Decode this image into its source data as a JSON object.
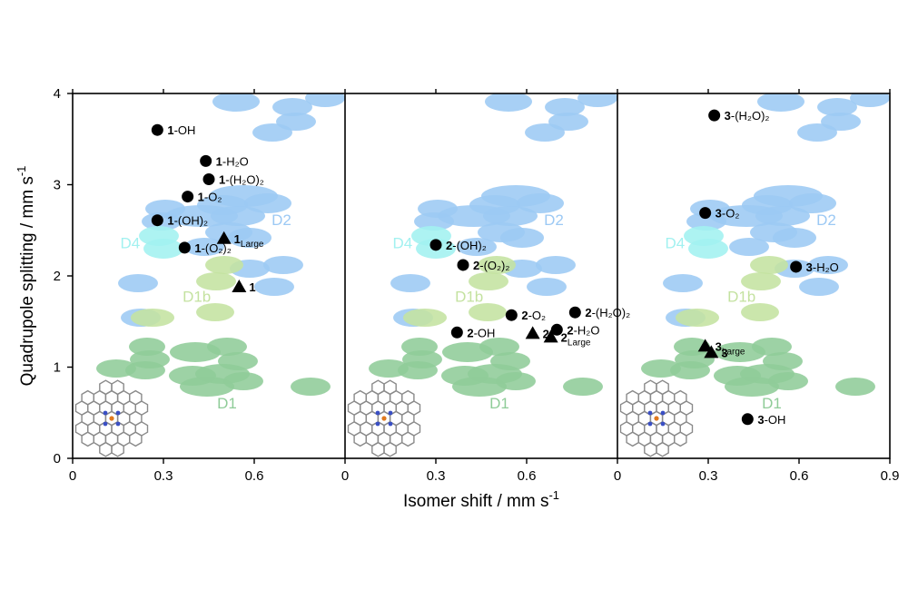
{
  "figure": {
    "ylabel": "Quadrupole splitting / mm s",
    "ylabel_sup": "-1",
    "xlabel": "Isomer shift / mm s",
    "xlabel_sup": "-1"
  },
  "colors": {
    "D1": "#8fcc98",
    "D1b": "#c4e2a0",
    "D2": "#9cc9f4",
    "D4": "#a2f1f0",
    "marker": "#000000"
  },
  "chart_data": [
    {
      "type": "scatter",
      "panel": 1,
      "xlim": [
        0,
        0.9
      ],
      "ylim": [
        0,
        4
      ],
      "x_ticks": [
        "0",
        "0.3",
        "0.6"
      ],
      "y_ticks": [
        "0",
        "1",
        "2",
        "3",
        "4"
      ],
      "region_labels": [
        {
          "text": "D2",
          "x": 0.69,
          "y": 2.6,
          "color": "D2"
        },
        {
          "text": "D4",
          "x": 0.19,
          "y": 2.35,
          "color": "D4"
        },
        {
          "text": "D1b",
          "x": 0.41,
          "y": 1.76,
          "color": "D1b"
        },
        {
          "text": "D1",
          "x": 0.51,
          "y": 0.59,
          "color": "D1"
        }
      ],
      "points": [
        {
          "marker": "circle",
          "x": 0.28,
          "y": 3.6,
          "label_bold": "1",
          "label_rest": "-OH"
        },
        {
          "marker": "circle",
          "x": 0.44,
          "y": 3.26,
          "label_bold": "1",
          "label_rest": "-H₂O"
        },
        {
          "marker": "circle",
          "x": 0.45,
          "y": 3.06,
          "label_bold": "1",
          "label_rest": "-(H₂O)₂"
        },
        {
          "marker": "circle",
          "x": 0.38,
          "y": 2.87,
          "label_bold": "1",
          "label_rest": "-O₂"
        },
        {
          "marker": "circle",
          "x": 0.28,
          "y": 2.61,
          "label_bold": "1",
          "label_rest": "-(OH)₂"
        },
        {
          "marker": "circle",
          "x": 0.37,
          "y": 2.31,
          "label_bold": "1",
          "label_rest": "-(O₂)₂"
        },
        {
          "marker": "triangle",
          "x": 0.5,
          "y": 2.41,
          "label_bold": "1",
          "label_sub": "Large"
        },
        {
          "marker": "triangle",
          "x": 0.55,
          "y": 1.88,
          "label_bold": "1",
          "label_rest": ""
        }
      ]
    },
    {
      "type": "scatter",
      "panel": 2,
      "xlim": [
        0,
        0.9
      ],
      "ylim": [
        0,
        4
      ],
      "x_ticks": [
        "0",
        "0.3",
        "0.6"
      ],
      "region_labels": [
        {
          "text": "D2",
          "x": 0.69,
          "y": 2.6,
          "color": "D2"
        },
        {
          "text": "D4",
          "x": 0.19,
          "y": 2.35,
          "color": "D4"
        },
        {
          "text": "D1b",
          "x": 0.41,
          "y": 1.76,
          "color": "D1b"
        },
        {
          "text": "D1",
          "x": 0.51,
          "y": 0.59,
          "color": "D1"
        }
      ],
      "points": [
        {
          "marker": "circle",
          "x": 0.3,
          "y": 2.34,
          "label_bold": "2",
          "label_rest": "-(OH)₂"
        },
        {
          "marker": "circle",
          "x": 0.39,
          "y": 2.12,
          "label_bold": "2",
          "label_rest": "-(O₂)₂"
        },
        {
          "marker": "circle",
          "x": 0.76,
          "y": 1.6,
          "label_bold": "2",
          "label_rest": "-(H₂O)₂"
        },
        {
          "marker": "circle",
          "x": 0.55,
          "y": 1.57,
          "label_bold": "2",
          "label_rest": "-O₂"
        },
        {
          "marker": "circle",
          "x": 0.37,
          "y": 1.38,
          "label_bold": "2",
          "label_rest": "-OH"
        },
        {
          "marker": "circle",
          "x": 0.7,
          "y": 1.41,
          "label_bold": "2",
          "label_rest": "-H₂O"
        },
        {
          "marker": "triangle",
          "x": 0.62,
          "y": 1.37,
          "label_bold": "2",
          "label_rest": ""
        },
        {
          "marker": "triangle",
          "x": 0.68,
          "y": 1.33,
          "label_bold": "2",
          "label_sub": "Large"
        }
      ]
    },
    {
      "type": "scatter",
      "panel": 3,
      "xlim": [
        0,
        0.9
      ],
      "ylim": [
        0,
        4
      ],
      "x_ticks": [
        "0",
        "0.3",
        "0.6",
        "0.9"
      ],
      "region_labels": [
        {
          "text": "D2",
          "x": 0.69,
          "y": 2.6,
          "color": "D2"
        },
        {
          "text": "D4",
          "x": 0.19,
          "y": 2.35,
          "color": "D4"
        },
        {
          "text": "D1b",
          "x": 0.41,
          "y": 1.76,
          "color": "D1b"
        },
        {
          "text": "D1",
          "x": 0.51,
          "y": 0.59,
          "color": "D1"
        }
      ],
      "points": [
        {
          "marker": "circle",
          "x": 0.32,
          "y": 3.76,
          "label_bold": "3",
          "label_rest": "-(H₂O)₂"
        },
        {
          "marker": "circle",
          "x": 0.29,
          "y": 2.69,
          "label_bold": "3",
          "label_rest": "-O₂"
        },
        {
          "marker": "circle",
          "x": 0.59,
          "y": 2.1,
          "label_bold": "3",
          "label_rest": "-H₂O"
        },
        {
          "marker": "triangle",
          "x": 0.29,
          "y": 1.23,
          "label_bold": "3",
          "label_sub": "Large"
        },
        {
          "marker": "triangle",
          "x": 0.31,
          "y": 1.16,
          "label_bold": "3",
          "label_rest": ""
        },
        {
          "marker": "circle",
          "x": 0.43,
          "y": 0.43,
          "label_bold": "3",
          "label_rest": "-OH"
        }
      ]
    }
  ]
}
